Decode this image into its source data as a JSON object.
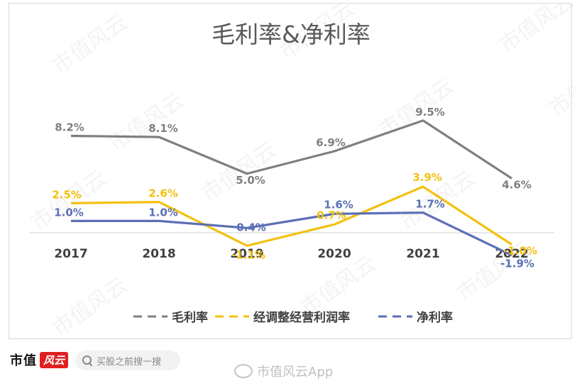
{
  "chart_data": {
    "type": "line",
    "title": "毛利率&净利率",
    "categories": [
      "2017",
      "2018",
      "2019",
      "2020",
      "2021",
      "2022"
    ],
    "series": [
      {
        "name": "毛利率",
        "values": [
          8.2,
          8.1,
          5.0,
          6.9,
          9.5,
          4.6
        ],
        "labels": [
          "8.2%",
          "8.1%",
          "5.0%",
          "6.9%",
          "9.5%",
          "4.6%"
        ],
        "color": "#7f7f7f"
      },
      {
        "name": "经调整经营利润率",
        "values": [
          2.5,
          2.6,
          -1.1,
          0.7,
          3.9,
          -1.0
        ],
        "labels": [
          "2.5%",
          "2.6%",
          "-1.1%",
          "0.7%",
          "3.9%",
          "-1.0%"
        ],
        "color": "#f2c10f"
      },
      {
        "name": "净利率",
        "values": [
          1.0,
          1.0,
          0.4,
          1.6,
          1.7,
          -1.9
        ],
        "labels": [
          "1.0%",
          "1.0%",
          "0.4%",
          "1.6%",
          "1.7%",
          "-1.9%"
        ],
        "color": "#5b6fb5"
      }
    ],
    "legend_position": "bottom",
    "legend_style": "dashed",
    "grid": false
  },
  "watermark": "市值风云",
  "footer": {
    "brand": "市值",
    "brand_badge": "风云",
    "search_placeholder": "买股之前搜一搜",
    "weibo_text": "市值风云App"
  }
}
